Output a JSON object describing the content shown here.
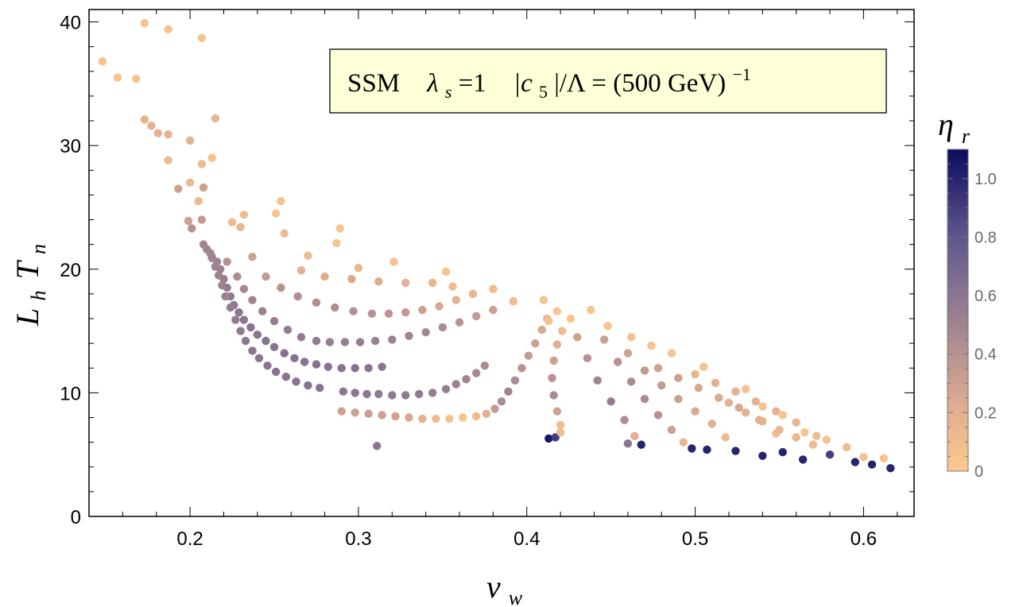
{
  "chart_data": {
    "type": "scatter",
    "title": "",
    "xlabel": "v_w",
    "ylabel": "L_h T_n",
    "xlim": [
      0.14,
      0.63
    ],
    "ylim": [
      0,
      41
    ],
    "xticks": [
      "0.2",
      "0.3",
      "0.4",
      "0.5",
      "0.6"
    ],
    "yticks": [
      "0",
      "10",
      "20",
      "30",
      "40"
    ],
    "grid": false,
    "legend_box": {
      "text_main": "SSM",
      "lambda_sym": "λ",
      "lambda_sub": "s",
      "lambda_val": " =1",
      "c_pre": "|c",
      "c_sub": "5",
      "c_post": "|/Λ = (500 GeV)",
      "c_sup": "−1",
      "position": "top-right"
    },
    "colorbar": {
      "label": "η",
      "label_sub": "r",
      "min": 0,
      "max": 1.1,
      "ticks": [
        "0",
        "0.2",
        "0.4",
        "0.6",
        "0.8",
        "1.0"
      ],
      "color_low": "#fdc98d",
      "color_mid": "#9c7b8e",
      "color_high": "#0b0b5e"
    },
    "series": [
      {
        "name": "scattered-upper",
        "points": [
          [
            0.148,
            36.8,
            0.05
          ],
          [
            0.157,
            35.5,
            0.05
          ],
          [
            0.168,
            35.4,
            0.05
          ],
          [
            0.173,
            39.9,
            0.05
          ],
          [
            0.187,
            39.4,
            0.05
          ],
          [
            0.207,
            38.7,
            0.05
          ],
          [
            0.173,
            32.1,
            0.18
          ],
          [
            0.177,
            31.6,
            0.18
          ],
          [
            0.181,
            31.0,
            0.18
          ],
          [
            0.187,
            30.9,
            0.18
          ],
          [
            0.187,
            28.8,
            0.12
          ],
          [
            0.2,
            30.4,
            0.18
          ],
          [
            0.215,
            32.2,
            0.15
          ],
          [
            0.213,
            29.0,
            0.05
          ],
          [
            0.207,
            28.5,
            0.12
          ],
          [
            0.193,
            26.5,
            0.3
          ],
          [
            0.2,
            27.0,
            0.12
          ],
          [
            0.208,
            26.6,
            0.3
          ],
          [
            0.205,
            25.5,
            0.12
          ],
          [
            0.207,
            24.0,
            0.35
          ],
          [
            0.199,
            23.9,
            0.3
          ],
          [
            0.201,
            23.3,
            0.4
          ],
          [
            0.254,
            25.5,
            0.05
          ],
          [
            0.251,
            24.5,
            0.05
          ],
          [
            0.225,
            23.8,
            0.12
          ],
          [
            0.232,
            24.4,
            0.1
          ],
          [
            0.256,
            22.9,
            0.12
          ],
          [
            0.23,
            23.4,
            0.15
          ],
          [
            0.289,
            23.3,
            0.05
          ],
          [
            0.287,
            22.1,
            0.05
          ],
          [
            0.321,
            20.6,
            0.05
          ],
          [
            0.352,
            19.8,
            0.05
          ]
        ]
      },
      {
        "name": "branch-1",
        "points": [
          [
            0.208,
            22.0,
            0.5
          ],
          [
            0.21,
            21.6,
            0.5
          ],
          [
            0.212,
            21.3,
            0.5
          ],
          [
            0.213,
            21.0,
            0.5
          ],
          [
            0.216,
            20.6,
            0.52
          ],
          [
            0.218,
            20.0,
            0.53
          ],
          [
            0.22,
            19.2,
            0.55
          ],
          [
            0.222,
            18.5,
            0.56
          ],
          [
            0.224,
            17.8,
            0.58
          ],
          [
            0.226,
            17.1,
            0.59
          ],
          [
            0.229,
            16.5,
            0.6
          ],
          [
            0.232,
            15.9,
            0.6
          ],
          [
            0.236,
            15.3,
            0.6
          ],
          [
            0.24,
            14.7,
            0.61
          ],
          [
            0.245,
            14.2,
            0.61
          ],
          [
            0.25,
            13.7,
            0.62
          ],
          [
            0.256,
            13.2,
            0.62
          ],
          [
            0.262,
            12.8,
            0.62
          ],
          [
            0.268,
            12.5,
            0.62
          ],
          [
            0.275,
            12.3,
            0.62
          ],
          [
            0.282,
            12.1,
            0.62
          ],
          [
            0.29,
            12.0,
            0.62
          ],
          [
            0.298,
            12.0,
            0.62
          ],
          [
            0.306,
            12.0,
            0.62
          ],
          [
            0.314,
            12.1,
            0.6
          ]
        ]
      },
      {
        "name": "branch-2",
        "points": [
          [
            0.213,
            20.9,
            0.5
          ],
          [
            0.215,
            20.2,
            0.5
          ],
          [
            0.217,
            19.5,
            0.51
          ],
          [
            0.219,
            18.7,
            0.52
          ],
          [
            0.221,
            17.8,
            0.53
          ],
          [
            0.224,
            16.9,
            0.55
          ],
          [
            0.227,
            15.9,
            0.57
          ],
          [
            0.23,
            15.0,
            0.58
          ],
          [
            0.233,
            14.2,
            0.59
          ],
          [
            0.237,
            13.4,
            0.6
          ],
          [
            0.241,
            12.8,
            0.61
          ],
          [
            0.246,
            12.2,
            0.61
          ],
          [
            0.251,
            11.7,
            0.62
          ],
          [
            0.257,
            11.3,
            0.62
          ],
          [
            0.263,
            10.9,
            0.62
          ],
          [
            0.27,
            10.6,
            0.62
          ],
          [
            0.277,
            10.4,
            0.62
          ],
          [
            0.291,
            10.1,
            0.6
          ],
          [
            0.298,
            10.0,
            0.6
          ],
          [
            0.305,
            9.9,
            0.6
          ],
          [
            0.312,
            9.9,
            0.58
          ],
          [
            0.32,
            9.8,
            0.58
          ],
          [
            0.328,
            9.8,
            0.58
          ],
          [
            0.336,
            9.9,
            0.58
          ],
          [
            0.344,
            10.0,
            0.55
          ],
          [
            0.352,
            10.3,
            0.55
          ],
          [
            0.358,
            10.7,
            0.52
          ],
          [
            0.364,
            11.1,
            0.5
          ],
          [
            0.37,
            11.6,
            0.48
          ],
          [
            0.375,
            12.2,
            0.45
          ]
        ]
      },
      {
        "name": "branch-3",
        "points": [
          [
            0.222,
            20.6,
            0.4
          ],
          [
            0.228,
            19.4,
            0.45
          ],
          [
            0.232,
            18.4,
            0.48
          ],
          [
            0.237,
            17.5,
            0.5
          ],
          [
            0.243,
            16.6,
            0.52
          ],
          [
            0.25,
            15.8,
            0.54
          ],
          [
            0.258,
            15.1,
            0.55
          ],
          [
            0.266,
            14.5,
            0.56
          ],
          [
            0.275,
            14.2,
            0.56
          ],
          [
            0.283,
            14.1,
            0.55
          ],
          [
            0.292,
            14.1,
            0.55
          ],
          [
            0.301,
            14.1,
            0.55
          ],
          [
            0.31,
            14.2,
            0.53
          ],
          [
            0.32,
            14.3,
            0.52
          ],
          [
            0.33,
            14.6,
            0.5
          ],
          [
            0.34,
            14.9,
            0.48
          ],
          [
            0.35,
            15.3,
            0.45
          ],
          [
            0.36,
            15.7,
            0.4
          ],
          [
            0.37,
            16.2,
            0.35
          ],
          [
            0.38,
            16.7,
            0.3
          ]
        ]
      },
      {
        "name": "branch-4",
        "points": [
          [
            0.237,
            21.0,
            0.3
          ],
          [
            0.245,
            19.4,
            0.35
          ],
          [
            0.254,
            18.5,
            0.4
          ],
          [
            0.264,
            17.8,
            0.42
          ],
          [
            0.275,
            17.3,
            0.43
          ],
          [
            0.286,
            16.9,
            0.43
          ],
          [
            0.297,
            16.6,
            0.42
          ],
          [
            0.308,
            16.4,
            0.4
          ],
          [
            0.318,
            16.4,
            0.38
          ],
          [
            0.328,
            16.5,
            0.35
          ],
          [
            0.338,
            16.7,
            0.3
          ],
          [
            0.348,
            17.0,
            0.25
          ],
          [
            0.358,
            17.5,
            0.2
          ],
          [
            0.368,
            18.0,
            0.15
          ],
          [
            0.38,
            18.4,
            0.1
          ],
          [
            0.392,
            17.4,
            0.1
          ]
        ]
      },
      {
        "name": "branch-5",
        "points": [
          [
            0.266,
            19.9,
            0.2
          ],
          [
            0.28,
            19.4,
            0.22
          ],
          [
            0.296,
            19.2,
            0.24
          ],
          [
            0.312,
            19.0,
            0.22
          ],
          [
            0.328,
            18.9,
            0.2
          ],
          [
            0.344,
            18.9,
            0.15
          ],
          [
            0.356,
            18.6,
            0.1
          ],
          [
            0.3,
            20.1,
            0.15
          ],
          [
            0.27,
            21.1,
            0.1
          ]
        ]
      },
      {
        "name": "bottom-valley",
        "points": [
          [
            0.29,
            8.5,
            0.3
          ],
          [
            0.298,
            8.4,
            0.3
          ],
          [
            0.306,
            8.3,
            0.3
          ],
          [
            0.314,
            8.2,
            0.3
          ],
          [
            0.322,
            8.1,
            0.28
          ],
          [
            0.33,
            8.0,
            0.25
          ],
          [
            0.338,
            7.9,
            0.2
          ],
          [
            0.346,
            7.9,
            0.1
          ],
          [
            0.354,
            7.9,
            0.05
          ],
          [
            0.362,
            8.0,
            0.05
          ],
          [
            0.37,
            8.1,
            0.1
          ],
          [
            0.376,
            8.3,
            0.2
          ],
          [
            0.381,
            8.7,
            0.35
          ],
          [
            0.385,
            9.3,
            0.45
          ],
          [
            0.389,
            10.1,
            0.5
          ],
          [
            0.393,
            11.0,
            0.45
          ],
          [
            0.397,
            12.0,
            0.4
          ],
          [
            0.401,
            13.0,
            0.35
          ],
          [
            0.405,
            14.0,
            0.3
          ],
          [
            0.409,
            15.1,
            0.25
          ],
          [
            0.412,
            16.0,
            0.15
          ],
          [
            0.41,
            17.5,
            0.05
          ],
          [
            0.311,
            5.7,
            0.6
          ]
        ]
      },
      {
        "name": "center-dip",
        "points": [
          [
            0.413,
            6.3,
            1.05
          ],
          [
            0.417,
            6.4,
            0.9
          ],
          [
            0.42,
            6.8,
            0.1
          ],
          [
            0.42,
            7.4,
            0.1
          ],
          [
            0.418,
            8.5,
            0.3
          ],
          [
            0.416,
            9.8,
            0.45
          ],
          [
            0.415,
            11.2,
            0.4
          ],
          [
            0.416,
            12.6,
            0.3
          ],
          [
            0.418,
            13.9,
            0.2
          ],
          [
            0.421,
            15.0,
            0.1
          ],
          [
            0.426,
            16.0,
            0.05
          ],
          [
            0.418,
            16.6,
            0.05
          ],
          [
            0.413,
            15.8,
            0.05
          ]
        ]
      },
      {
        "name": "right-fan",
        "points": [
          [
            0.43,
            14.5,
            0.3
          ],
          [
            0.436,
            12.8,
            0.4
          ],
          [
            0.442,
            11.0,
            0.5
          ],
          [
            0.45,
            9.3,
            0.55
          ],
          [
            0.458,
            7.8,
            0.45
          ],
          [
            0.464,
            6.5,
            0.2
          ],
          [
            0.468,
            5.8,
            1.0
          ],
          [
            0.46,
            5.9,
            0.6
          ],
          [
            0.438,
            16.7,
            0.05
          ],
          [
            0.446,
            14.3,
            0.3
          ],
          [
            0.454,
            12.5,
            0.4
          ],
          [
            0.462,
            10.9,
            0.45
          ],
          [
            0.47,
            9.5,
            0.45
          ],
          [
            0.478,
            8.2,
            0.4
          ],
          [
            0.486,
            7.0,
            0.3
          ],
          [
            0.493,
            6.0,
            0.15
          ],
          [
            0.498,
            5.5,
            1.0
          ],
          [
            0.448,
            15.4,
            0.05
          ],
          [
            0.46,
            13.2,
            0.3
          ],
          [
            0.47,
            11.8,
            0.35
          ],
          [
            0.48,
            10.6,
            0.35
          ],
          [
            0.49,
            9.5,
            0.3
          ],
          [
            0.5,
            8.5,
            0.25
          ],
          [
            0.51,
            7.5,
            0.2
          ],
          [
            0.518,
            6.4,
            0.1
          ],
          [
            0.524,
            5.3,
            1.0
          ],
          [
            0.462,
            14.5,
            0.05
          ],
          [
            0.474,
            13.8,
            0.05
          ],
          [
            0.486,
            13.2,
            0.05
          ],
          [
            0.478,
            12.0,
            0.3
          ],
          [
            0.49,
            11.2,
            0.3
          ],
          [
            0.502,
            10.4,
            0.25
          ],
          [
            0.514,
            9.6,
            0.25
          ],
          [
            0.526,
            8.8,
            0.25
          ],
          [
            0.538,
            7.8,
            0.2
          ],
          [
            0.548,
            6.7,
            0.1
          ],
          [
            0.552,
            5.2,
            1.0
          ],
          [
            0.5,
            11.5,
            0.15
          ],
          [
            0.512,
            10.8,
            0.2
          ],
          [
            0.524,
            10.1,
            0.2
          ],
          [
            0.536,
            9.3,
            0.2
          ],
          [
            0.548,
            8.5,
            0.2
          ],
          [
            0.56,
            7.6,
            0.15
          ],
          [
            0.572,
            6.5,
            0.1
          ],
          [
            0.58,
            5.0,
            0.9
          ],
          [
            0.52,
            9.2,
            0.2
          ],
          [
            0.53,
            8.4,
            0.2
          ],
          [
            0.54,
            7.7,
            0.2
          ],
          [
            0.55,
            7.0,
            0.15
          ],
          [
            0.56,
            6.4,
            0.15
          ],
          [
            0.57,
            5.8,
            0.1
          ],
          [
            0.59,
            5.6,
            0.1
          ],
          [
            0.6,
            4.8,
            0.05
          ],
          [
            0.605,
            4.2,
            1.0
          ],
          [
            0.616,
            3.9,
            1.0
          ],
          [
            0.612,
            4.7,
            0.05
          ],
          [
            0.505,
            12.1,
            0.05
          ],
          [
            0.53,
            10.3,
            0.05
          ],
          [
            0.54,
            8.9,
            0.05
          ],
          [
            0.552,
            8.2,
            0.05
          ],
          [
            0.565,
            6.8,
            0.05
          ],
          [
            0.578,
            6.2,
            0.05
          ],
          [
            0.507,
            5.4,
            1.0
          ],
          [
            0.54,
            4.9,
            1.0
          ],
          [
            0.564,
            4.6,
            1.0
          ],
          [
            0.595,
            4.4,
            1.0
          ]
        ]
      }
    ]
  }
}
